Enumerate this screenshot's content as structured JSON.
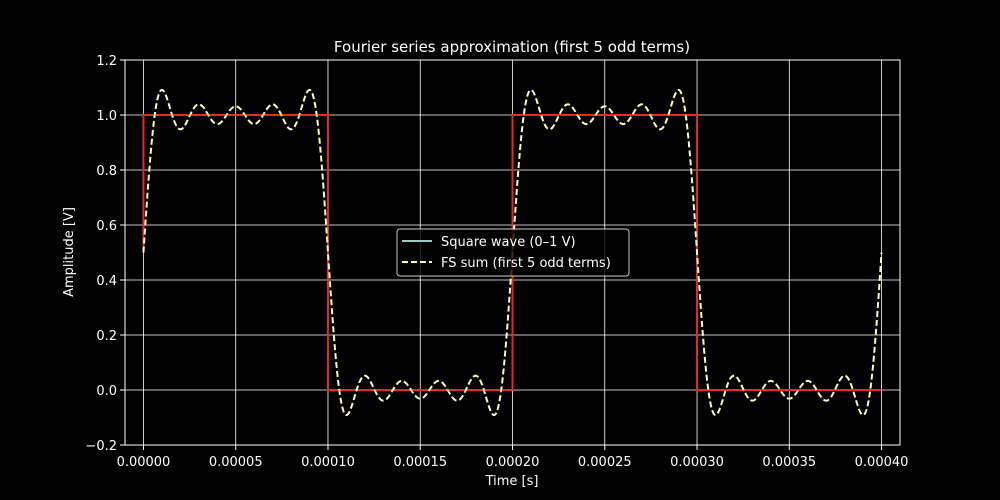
{
  "chart_data": {
    "type": "line",
    "title": "Fourier series approximation (first 5 odd terms)",
    "xlabel": "Time [s]",
    "ylabel": "Amplitude [V]",
    "xlim": [
      -1e-05,
      0.00041
    ],
    "ylim": [
      -0.2,
      1.2
    ],
    "xticks": [
      0,
      5e-05,
      0.0001,
      0.00015,
      0.0002,
      0.00025,
      0.0003,
      0.00035,
      0.0004
    ],
    "xtick_labels": [
      "0.00000",
      "0.00005",
      "0.00010",
      "0.00015",
      "0.00020",
      "0.00025",
      "0.00030",
      "0.00035",
      "0.00040"
    ],
    "yticks": [
      -0.2,
      0.0,
      0.2,
      0.4,
      0.6,
      0.8,
      1.0,
      1.2
    ],
    "ytick_labels": [
      "−0.2",
      "0.0",
      "0.2",
      "0.4",
      "0.6",
      "0.8",
      "1.0",
      "1.2"
    ],
    "grid": true,
    "legend_position": "center",
    "series": [
      {
        "name": "Square wave (0–1 V)",
        "style": "solid",
        "legend_color": "#8dd3c7",
        "plot_color": "#e8291c",
        "x": [
          0,
          0,
          0.0001,
          0.0001,
          0.0002,
          0.0002,
          0.0003,
          0.0003,
          0.0004
        ],
        "y": [
          0.5,
          1,
          1,
          0,
          0,
          1,
          1,
          0,
          0
        ]
      },
      {
        "name": "FS sum (first 5 odd terms)",
        "style": "dashed",
        "color": "#ffffb3",
        "fundamental_period": 0.0002,
        "offset": 0.5,
        "harmonics": [
          1,
          3,
          5,
          7,
          9
        ],
        "x_range": [
          0,
          0.0004
        ]
      }
    ]
  }
}
